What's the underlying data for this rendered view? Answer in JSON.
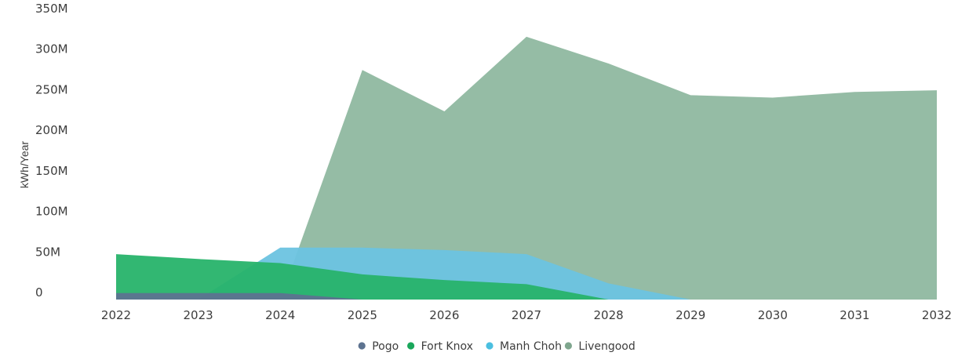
{
  "chart_data": {
    "type": "area",
    "title": "",
    "xlabel": "",
    "ylabel": "kWh/Year",
    "x": [
      "2022",
      "2023",
      "2024",
      "2025",
      "2026",
      "2027",
      "2028",
      "2029",
      "2030",
      "2031",
      "2032"
    ],
    "ylim": [
      0,
      350000000
    ],
    "yticks": [
      {
        "value": 0,
        "label": "0"
      },
      {
        "value": 50000000,
        "label": "50M"
      },
      {
        "value": 100000000,
        "label": "100M"
      },
      {
        "value": 150000000,
        "label": "150M"
      },
      {
        "value": 200000000,
        "label": "200M"
      },
      {
        "value": 250000000,
        "label": "250M"
      },
      {
        "value": 300000000,
        "label": "300M"
      },
      {
        "value": 350000000,
        "label": "350M"
      }
    ],
    "grid": false,
    "legend_position": "bottom",
    "series": [
      {
        "name": "Livengood",
        "color": "#8fb8a0",
        "values": [
          0,
          0,
          0,
          283000000,
          232000000,
          324000000,
          291000000,
          252000000,
          249000000,
          256000000,
          258000000
        ]
      },
      {
        "name": "Manh Choh",
        "color": "#6bc3e0",
        "values": [
          0,
          0,
          64000000,
          64000000,
          61000000,
          56000000,
          20000000,
          0,
          0,
          0,
          0
        ]
      },
      {
        "name": "Fort Knox",
        "color": "#27b36a",
        "values": [
          56000000,
          50000000,
          45000000,
          31000000,
          24000000,
          19000000,
          0,
          0,
          0,
          0,
          0
        ]
      },
      {
        "name": "Pogo",
        "color": "#5d7390",
        "values": [
          8000000,
          8000000,
          8000000,
          0,
          0,
          0,
          0,
          0,
          0,
          0,
          0
        ]
      }
    ],
    "legend": [
      {
        "name": "Pogo",
        "color": "#5d7390"
      },
      {
        "name": "Fort Knox",
        "color": "#1aa75b"
      },
      {
        "name": "Manh Choh",
        "color": "#4bbfe0"
      },
      {
        "name": "Livengood",
        "color": "#7fa68e"
      }
    ]
  }
}
